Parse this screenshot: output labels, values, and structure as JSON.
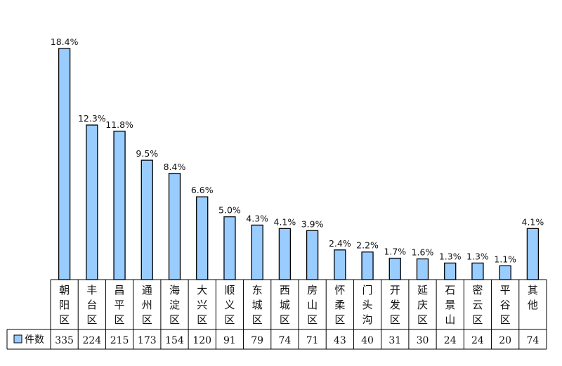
{
  "chart_data": {
    "type": "bar",
    "categories": [
      "朝阳区",
      "丰台区",
      "昌平区",
      "通州区",
      "海淀区",
      "大兴区",
      "顺义区",
      "东城区",
      "西城区",
      "房山区",
      "怀柔区",
      "门头沟",
      "开发区",
      "延庆区",
      "石景山",
      "密云区",
      "平谷区",
      "其他"
    ],
    "values": [
      335,
      224,
      215,
      173,
      154,
      120,
      91,
      79,
      74,
      71,
      43,
      40,
      31,
      30,
      24,
      24,
      20,
      74
    ],
    "data_labels": [
      "18.4%",
      "12.3%",
      "11.8%",
      "9.5%",
      "8.4%",
      "6.6%",
      "5.0%",
      "4.3%",
      "4.1%",
      "3.9%",
      "2.4%",
      "2.2%",
      "1.7%",
      "1.6%",
      "1.3%",
      "1.3%",
      "1.1%",
      "4.1%"
    ],
    "series": [
      {
        "name": "件数"
      }
    ],
    "legend": "left of data table",
    "grid": false,
    "ylim": [
      0,
      335
    ],
    "bar_color": "#99ccff",
    "bar_edge_color": "#000000"
  }
}
